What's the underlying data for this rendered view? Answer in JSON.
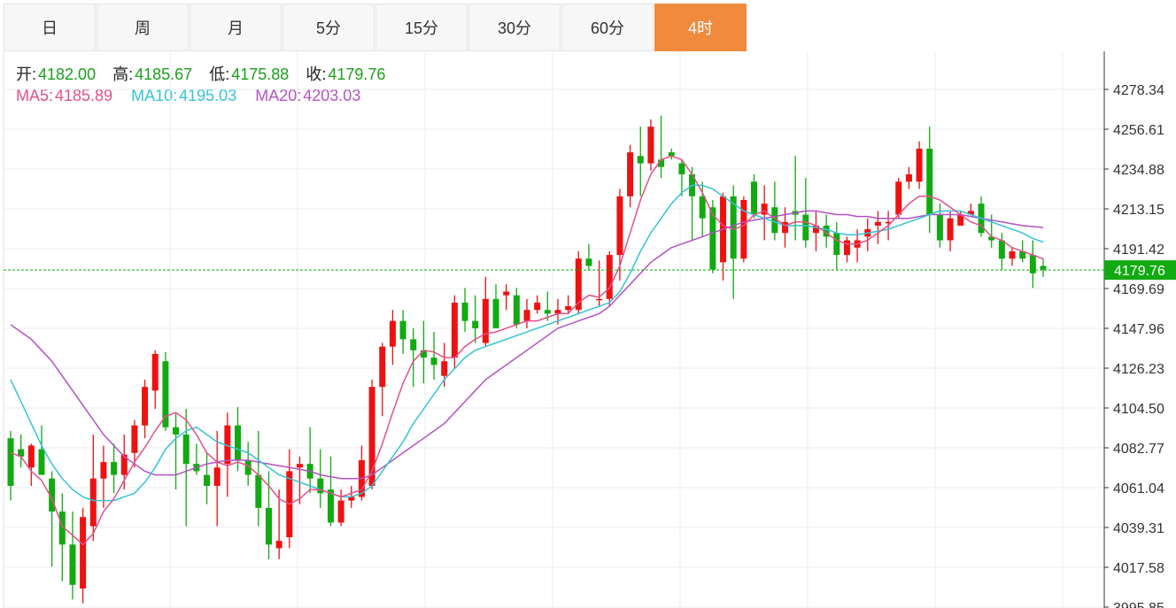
{
  "tabs": [
    {
      "label": "日",
      "active": false
    },
    {
      "label": "周",
      "active": false
    },
    {
      "label": "月",
      "active": false
    },
    {
      "label": "5分",
      "active": false
    },
    {
      "label": "15分",
      "active": false
    },
    {
      "label": "30分",
      "active": false
    },
    {
      "label": "60分",
      "active": false
    },
    {
      "label": "4时",
      "active": true
    }
  ],
  "ohlc_legend": {
    "open_label": "开:",
    "open": "4182.00",
    "high_label": "高:",
    "high": "4185.67",
    "low_label": "低:",
    "low": "4175.88",
    "close_label": "收:",
    "close": "4179.76"
  },
  "ma_legend": {
    "ma5_label": "MA5:",
    "ma5": "4185.89",
    "ma10_label": "MA10:",
    "ma10": "4195.03",
    "ma20_label": "MA20:",
    "ma20": "4203.03"
  },
  "colors": {
    "up": "#ee1111",
    "down": "#11aa11",
    "ma5": "#e4508a",
    "ma10": "#35c3d6",
    "ma20": "#b452c4",
    "accent": "#f08a3c",
    "grid": "#e8eef3"
  },
  "chart_data": {
    "type": "candlestick",
    "ylim": [
      3995.85,
      4290
    ],
    "y_ticks": [
      "4278.34",
      "4256.61",
      "4234.88",
      "4213.15",
      "4191.42",
      "4169.69",
      "4147.96",
      "4126.23",
      "4104.50",
      "4082.77",
      "4061.04",
      "4039.31",
      "4017.58",
      "3995.85"
    ],
    "last_price": "4179.76",
    "candles": [
      [
        4088,
        4092,
        4054,
        4062
      ],
      [
        4082,
        4090,
        4072,
        4078
      ],
      [
        4072,
        4085,
        4062,
        4084
      ],
      [
        4082,
        4095,
        4068,
        4068
      ],
      [
        4066,
        4070,
        4018,
        4048
      ],
      [
        4048,
        4058,
        4010,
        4030
      ],
      [
        4030,
        4048,
        4000,
        4008
      ],
      [
        4006,
        4050,
        3998,
        4045
      ],
      [
        4040,
        4090,
        4032,
        4066
      ],
      [
        4066,
        4084,
        4050,
        4075
      ],
      [
        4075,
        4085,
        4058,
        4068
      ],
      [
        4068,
        4090,
        4060,
        4079
      ],
      [
        4080,
        4098,
        4072,
        4095
      ],
      [
        4095,
        4120,
        4088,
        4116
      ],
      [
        4114,
        4136,
        4104,
        4134
      ],
      [
        4130,
        4135,
        4092,
        4094
      ],
      [
        4094,
        4102,
        4060,
        4090
      ],
      [
        4090,
        4104,
        4040,
        4074
      ],
      [
        4074,
        4085,
        4068,
        4070
      ],
      [
        4068,
        4080,
        4052,
        4062
      ],
      [
        4062,
        4092,
        4040,
        4072
      ],
      [
        4074,
        4102,
        4056,
        4095
      ],
      [
        4095,
        4105,
        4070,
        4076
      ],
      [
        4076,
        4086,
        4062,
        4068
      ],
      [
        4068,
        4092,
        4040,
        4050
      ],
      [
        4050,
        4070,
        4022,
        4030
      ],
      [
        4028,
        4060,
        4022,
        4032
      ],
      [
        4034,
        4082,
        4028,
        4070
      ],
      [
        4072,
        4078,
        4052,
        4074
      ],
      [
        4074,
        4094,
        4058,
        4066
      ],
      [
        4066,
        4082,
        4050,
        4058
      ],
      [
        4060,
        4078,
        4040,
        4042
      ],
      [
        4042,
        4060,
        4040,
        4054
      ],
      [
        4054,
        4062,
        4050,
        4056
      ],
      [
        4056,
        4084,
        4054,
        4076
      ],
      [
        4062,
        4120,
        4060,
        4116
      ],
      [
        4116,
        4140,
        4100,
        4138
      ],
      [
        4138,
        4158,
        4128,
        4152
      ],
      [
        4152,
        4158,
        4134,
        4142
      ],
      [
        4142,
        4148,
        4116,
        4136
      ],
      [
        4136,
        4152,
        4118,
        4132
      ],
      [
        4132,
        4146,
        4120,
        4128
      ],
      [
        4122,
        4140,
        4116,
        4130
      ],
      [
        4132,
        4166,
        4126,
        4162
      ],
      [
        4162,
        4170,
        4146,
        4152
      ],
      [
        4152,
        4166,
        4140,
        4148
      ],
      [
        4140,
        4176,
        4138,
        4164
      ],
      [
        4164,
        4172,
        4150,
        4148
      ],
      [
        4166,
        4172,
        4158,
        4168
      ],
      [
        4166,
        4170,
        4148,
        4150
      ],
      [
        4152,
        4164,
        4148,
        4158
      ],
      [
        4158,
        4166,
        4156,
        4162
      ],
      [
        4158,
        4168,
        4152,
        4156
      ],
      [
        4156,
        4164,
        4150,
        4158
      ],
      [
        4158,
        4166,
        4156,
        4160
      ],
      [
        4158,
        4190,
        4156,
        4186
      ],
      [
        4186,
        4194,
        4180,
        4182
      ],
      [
        4164,
        4185,
        4160,
        4164
      ],
      [
        4164,
        4190,
        4160,
        4188
      ],
      [
        4188,
        4224,
        4174,
        4220
      ],
      [
        4220,
        4248,
        4214,
        4244
      ],
      [
        4242,
        4258,
        4220,
        4238
      ],
      [
        4238,
        4262,
        4234,
        4258
      ],
      [
        4240,
        4264,
        4230,
        4236
      ],
      [
        4244,
        4246,
        4240,
        4242
      ],
      [
        4238,
        4240,
        4220,
        4232
      ],
      [
        4232,
        4236,
        4196,
        4220
      ],
      [
        4220,
        4228,
        4198,
        4208
      ],
      [
        4214,
        4218,
        4178,
        4180
      ],
      [
        4184,
        4222,
        4174,
        4220
      ],
      [
        4220,
        4226,
        4164,
        4186
      ],
      [
        4186,
        4220,
        4184,
        4218
      ],
      [
        4228,
        4232,
        4208,
        4210
      ],
      [
        4210,
        4226,
        4196,
        4216
      ],
      [
        4214,
        4228,
        4196,
        4200
      ],
      [
        4200,
        4214,
        4192,
        4206
      ],
      [
        4212,
        4242,
        4196,
        4210
      ],
      [
        4210,
        4230,
        4192,
        4196
      ],
      [
        4200,
        4212,
        4190,
        4204
      ],
      [
        4204,
        4210,
        4192,
        4198
      ],
      [
        4200,
        4206,
        4180,
        4188
      ],
      [
        4188,
        4198,
        4184,
        4196
      ],
      [
        4192,
        4202,
        4184,
        4196
      ],
      [
        4198,
        4208,
        4190,
        4202
      ],
      [
        4204,
        4212,
        4194,
        4206
      ],
      [
        4206,
        4212,
        4196,
        4206
      ],
      [
        4210,
        4230,
        4208,
        4228
      ],
      [
        4228,
        4236,
        4224,
        4232
      ],
      [
        4228,
        4250,
        4224,
        4246
      ],
      [
        4246,
        4258,
        4200,
        4210
      ],
      [
        4210,
        4216,
        4192,
        4196
      ],
      [
        4196,
        4212,
        4190,
        4208
      ],
      [
        4204,
        4212,
        4204,
        4210
      ],
      [
        4210,
        4216,
        4210,
        4212
      ],
      [
        4216,
        4220,
        4198,
        4200
      ],
      [
        4198,
        4210,
        4192,
        4196
      ],
      [
        4196,
        4200,
        4180,
        4186
      ],
      [
        4186,
        4192,
        4182,
        4190
      ],
      [
        4190,
        4196,
        4184,
        4186
      ],
      [
        4188,
        4196,
        4170,
        4178
      ],
      [
        4182,
        4186,
        4176,
        4180
      ]
    ],
    "ma5": [
      4080,
      4078,
      4070,
      4065,
      4055,
      4040,
      4035,
      4030,
      4036,
      4048,
      4055,
      4065,
      4075,
      4083,
      4092,
      4100,
      4102,
      4098,
      4090,
      4080,
      4075,
      4073,
      4075,
      4073,
      4068,
      4062,
      4055,
      4052,
      4055,
      4060,
      4060,
      4058,
      4056,
      4058,
      4060,
      4070,
      4085,
      4102,
      4118,
      4130,
      4136,
      4135,
      4132,
      4132,
      4138,
      4142,
      4145,
      4146,
      4148,
      4150,
      4152,
      4152,
      4154,
      4156,
      4156,
      4162,
      4166,
      4165,
      4170,
      4182,
      4200,
      4218,
      4232,
      4240,
      4242,
      4240,
      4232,
      4222,
      4210,
      4204,
      4202,
      4204,
      4210,
      4212,
      4208,
      4204,
      4206,
      4206,
      4204,
      4200,
      4196,
      4194,
      4194,
      4196,
      4200,
      4204,
      4210,
      4216,
      4220,
      4220,
      4218,
      4214,
      4210,
      4206,
      4204,
      4198,
      4196,
      4192,
      4190,
      4188,
      4185.89
    ],
    "ma10": [
      4120,
      4108,
      4096,
      4084,
      4074,
      4066,
      4060,
      4056,
      4054,
      4054,
      4054,
      4056,
      4058,
      4064,
      4072,
      4082,
      4088,
      4092,
      4094,
      4090,
      4086,
      4084,
      4082,
      4080,
      4076,
      4072,
      4068,
      4066,
      4064,
      4062,
      4060,
      4058,
      4056,
      4056,
      4058,
      4062,
      4070,
      4078,
      4086,
      4096,
      4104,
      4112,
      4120,
      4126,
      4132,
      4136,
      4138,
      4140,
      4142,
      4144,
      4146,
      4148,
      4150,
      4152,
      4154,
      4156,
      4158,
      4160,
      4162,
      4168,
      4178,
      4190,
      4200,
      4208,
      4216,
      4222,
      4226,
      4226,
      4224,
      4220,
      4216,
      4212,
      4210,
      4208,
      4206,
      4204,
      4204,
      4204,
      4203,
      4202,
      4200,
      4199,
      4199,
      4200,
      4201,
      4202,
      4204,
      4206,
      4208,
      4210,
      4212,
      4212,
      4212,
      4210,
      4208,
      4206,
      4204,
      4202,
      4200,
      4197,
      4195.03
    ],
    "ma20": [
      4150,
      4146,
      4142,
      4136,
      4130,
      4122,
      4114,
      4106,
      4098,
      4090,
      4084,
      4078,
      4074,
      4070,
      4068,
      4068,
      4068,
      4070,
      4072,
      4074,
      4075,
      4076,
      4076,
      4076,
      4075,
      4074,
      4073,
      4072,
      4071,
      4070,
      4068,
      4067,
      4066,
      4066,
      4066,
      4068,
      4072,
      4076,
      4080,
      4084,
      4088,
      4092,
      4096,
      4102,
      4108,
      4114,
      4120,
      4124,
      4128,
      4132,
      4136,
      4140,
      4144,
      4148,
      4150,
      4152,
      4154,
      4156,
      4160,
      4166,
      4172,
      4178,
      4184,
      4188,
      4192,
      4194,
      4196,
      4198,
      4200,
      4202,
      4204,
      4206,
      4207,
      4208,
      4209,
      4210,
      4211,
      4212,
      4212,
      4211,
      4210,
      4210,
      4209,
      4209,
      4208,
      4208,
      4208,
      4208,
      4209,
      4210,
      4210,
      4210,
      4210,
      4209,
      4208,
      4207,
      4206,
      4205,
      4204,
      4203.5,
      4203.03
    ]
  }
}
